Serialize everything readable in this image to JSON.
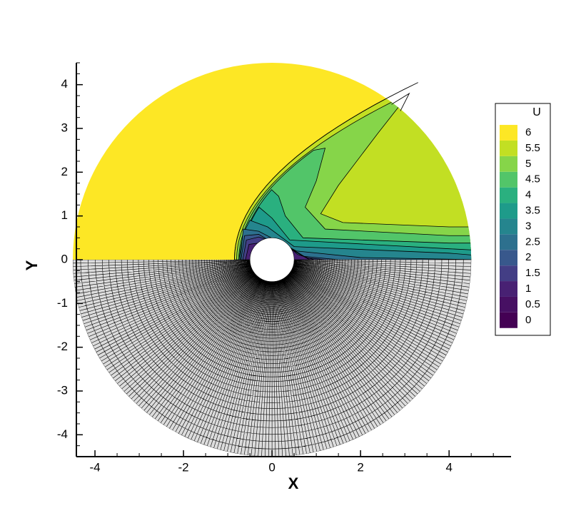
{
  "chart_data": {
    "type": "contour",
    "x_label": "X",
    "y_label": "Y",
    "xlim": [
      -4.42,
      5.4
    ],
    "ylim": [
      -4.5,
      4.5
    ],
    "xticks": [
      -4,
      -2,
      0,
      2,
      4
    ],
    "yticks": [
      -4,
      -3,
      -2,
      -1,
      0,
      1,
      2,
      3,
      4
    ],
    "legend": {
      "title": "U",
      "levels": [
        0,
        0.5,
        1,
        1.5,
        2,
        2.5,
        3,
        3.5,
        4,
        4.5,
        5,
        5.5,
        6
      ],
      "colors": [
        "#440154",
        "#471063",
        "#482173",
        "#433e85",
        "#38588c",
        "#2d708e",
        "#25858e",
        "#1e9b8a",
        "#2ab07f",
        "#52c569",
        "#86d549",
        "#c2df23",
        "#fde725"
      ]
    }
  }
}
